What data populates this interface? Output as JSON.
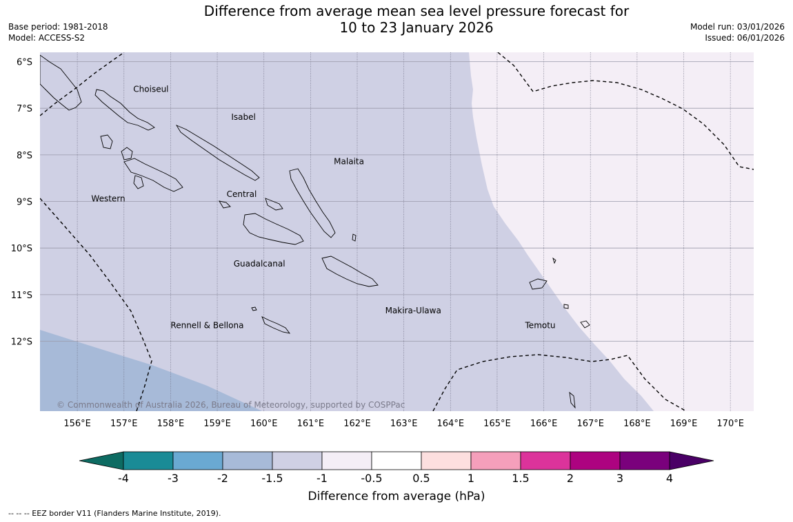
{
  "header": {
    "title_line1": "Difference from average mean sea level pressure forecast for",
    "title_line2": "10 to 23 January 2026",
    "base_period": "Base period: 1981-2018",
    "model": "Model: ACCESS-S2",
    "model_run": "Model run: 03/01/2026",
    "issued": "Issued: 06/01/2026"
  },
  "map": {
    "lon_range": [
      155.2,
      170.5
    ],
    "lat_range": [
      -13.5,
      -5.8
    ],
    "lon_ticks": [
      "156°E",
      "157°E",
      "158°E",
      "159°E",
      "160°E",
      "161°E",
      "162°E",
      "163°E",
      "164°E",
      "165°E",
      "166°E",
      "167°E",
      "168°E",
      "169°E",
      "170°E"
    ],
    "lat_ticks": [
      "6°S",
      "7°S",
      "8°S",
      "9°S",
      "10°S",
      "11°S",
      "12°S"
    ],
    "lon_tick_values": [
      156,
      157,
      158,
      159,
      160,
      161,
      162,
      163,
      164,
      165,
      166,
      167,
      168,
      169,
      170
    ],
    "lat_tick_values": [
      -6,
      -7,
      -8,
      -9,
      -10,
      -11,
      -12
    ],
    "province_labels": [
      {
        "name": "Choiseul",
        "lon": 157.2,
        "lat": -6.65
      },
      {
        "name": "Isabel",
        "lon": 159.3,
        "lat": -7.25
      },
      {
        "name": "Malaita",
        "lon": 161.5,
        "lat": -8.2
      },
      {
        "name": "Western",
        "lon": 156.3,
        "lat": -9.0
      },
      {
        "name": "Central",
        "lon": 159.2,
        "lat": -8.9
      },
      {
        "name": "Guadalcanal",
        "lon": 159.35,
        "lat": -10.4
      },
      {
        "name": "Makira-Ulawa",
        "lon": 162.6,
        "lat": -11.4
      },
      {
        "name": "Rennell & Bellona",
        "lon": 158.0,
        "lat": -11.72
      },
      {
        "name": "Temotu",
        "lon": 165.6,
        "lat": -11.72
      }
    ],
    "copyright": "© Commonwealth of Australia 2026, Bureau of Meteorology, supported by COSPPac",
    "fill_colors": {
      "band_-2_to_-1.5": "#a7bad8",
      "band_-1.5_to_-1": "#cfd0e4",
      "band_-1_to_-0.5": "#f4eef6"
    }
  },
  "colorbar": {
    "ticks": [
      "-4",
      "-3",
      "-2",
      "-1.5",
      "-1",
      "-0.5",
      "0.5",
      "1",
      "1.5",
      "2",
      "3",
      "4"
    ],
    "colors": [
      "#1a8b96",
      "#6aa9d2",
      "#a7bad8",
      "#cfd0e4",
      "#f4eef6",
      "#ffffff",
      "#fddfdf",
      "#f59fbb",
      "#dc339b",
      "#ad0380",
      "#7a017c"
    ],
    "under_color": "#0d6b62",
    "over_color": "#4a0066",
    "label": "Difference from average (hPa)"
  },
  "footer": {
    "eez_note": "--  --  -- EEZ border V11 (Flanders Marine Institute, 2019)."
  }
}
